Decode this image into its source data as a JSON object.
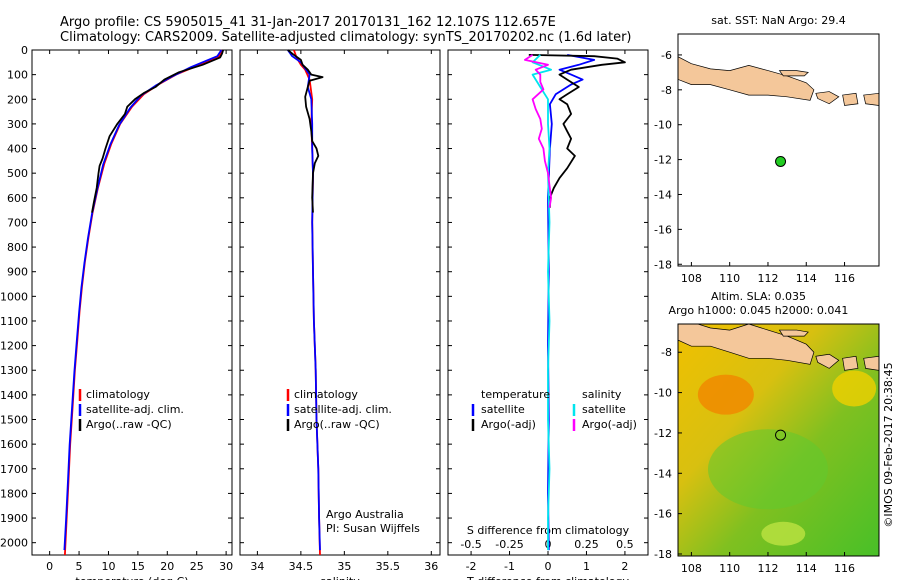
{
  "title": {
    "line1": "Argo profile: CS 5905015_41 31-Jan-2017 20170131_162 12.107S 112.657E",
    "line2": "Climatology: CARS2009. Satellite-adjusted climatology: synTS_20170202.nc (1.6d later)"
  },
  "depth_ticks": [
    0,
    100,
    200,
    300,
    400,
    500,
    600,
    700,
    800,
    900,
    1000,
    1100,
    1200,
    1300,
    1400,
    1500,
    1600,
    1700,
    1800,
    1900,
    2000
  ],
  "colors": {
    "clim": "#ff0000",
    "sat": "#0000ff",
    "argo": "#000000",
    "sat_s": "#00e5ee",
    "argo_s": "#ff00ff",
    "land": "#f4c79a",
    "marker": "#22cc22"
  },
  "chart_data": [
    {
      "type": "line",
      "id": "temperature",
      "xlabel": "temperature (deg C)",
      "xticks": [
        0,
        5,
        10,
        15,
        20,
        25,
        30
      ],
      "xlim": [
        -3,
        31
      ],
      "ylim": [
        0,
        2050
      ],
      "legend": [
        "climatology",
        "satellite-adj. clim.",
        "Argo(..raw -QC)"
      ],
      "series": [
        {
          "name": "climatology",
          "color": "clim",
          "points": [
            [
              29.3,
              0
            ],
            [
              28.8,
              25
            ],
            [
              27,
              45
            ],
            [
              24.5,
              70
            ],
            [
              21.5,
              100
            ],
            [
              18.5,
              140
            ],
            [
              16,
              180
            ],
            [
              14,
              230
            ],
            [
              12,
              300
            ],
            [
              10.5,
              380
            ],
            [
              9.3,
              460
            ],
            [
              8.2,
              560
            ],
            [
              7.3,
              660
            ],
            [
              6.6,
              760
            ],
            [
              6,
              860
            ],
            [
              5.5,
              960
            ],
            [
              5.1,
              1060
            ],
            [
              4.7,
              1180
            ],
            [
              4.3,
              1300
            ],
            [
              3.9,
              1450
            ],
            [
              3.5,
              1600
            ],
            [
              3.2,
              1750
            ],
            [
              2.9,
              1900
            ],
            [
              2.6,
              2050
            ]
          ]
        },
        {
          "name": "satellite-adj. clim.",
          "color": "sat",
          "points": [
            [
              29.2,
              0
            ],
            [
              28.5,
              25
            ],
            [
              26.5,
              45
            ],
            [
              24,
              70
            ],
            [
              21,
              105
            ],
            [
              18,
              145
            ],
            [
              15.5,
              185
            ],
            [
              13.7,
              235
            ],
            [
              11.8,
              305
            ],
            [
              10.3,
              385
            ],
            [
              9.1,
              465
            ],
            [
              8.1,
              565
            ],
            [
              7.2,
              665
            ],
            [
              6.5,
              765
            ],
            [
              5.9,
              865
            ],
            [
              5.4,
              965
            ],
            [
              5,
              1065
            ],
            [
              4.6,
              1185
            ],
            [
              4.2,
              1305
            ],
            [
              3.8,
              1455
            ],
            [
              3.4,
              1605
            ],
            [
              3.1,
              1755
            ],
            [
              2.8,
              1905
            ],
            [
              2.5,
              2030
            ]
          ]
        },
        {
          "name": "Argo(..raw -QC)",
          "color": "argo",
          "points": [
            [
              29.5,
              0
            ],
            [
              29.3,
              15
            ],
            [
              29,
              30
            ],
            [
              26,
              60
            ],
            [
              22,
              90
            ],
            [
              19.5,
              120
            ],
            [
              18,
              150
            ],
            [
              16,
              175
            ],
            [
              14.5,
              200
            ],
            [
              13.2,
              230
            ],
            [
              12.8,
              260
            ],
            [
              11.5,
              300
            ],
            [
              10.2,
              350
            ],
            [
              9.5,
              400
            ],
            [
              9,
              440
            ],
            [
              8.5,
              470
            ],
            [
              8.3,
              500
            ],
            [
              8,
              560
            ],
            [
              7.5,
              620
            ],
            [
              7.2,
              660
            ]
          ]
        }
      ]
    },
    {
      "type": "line",
      "id": "salinity",
      "xlabel": "salinity",
      "xticks": [
        34,
        34.5,
        35,
        35.5,
        36
      ],
      "xlim": [
        33.8,
        36.1
      ],
      "ylim": [
        0,
        2050
      ],
      "legend": [
        "climatology",
        "satellite-adj. clim.",
        "Argo(..raw -QC)"
      ],
      "annotation": [
        "Argo Australia",
        "PI: Susan Wijffels"
      ],
      "series": [
        {
          "name": "climatology",
          "color": "clim",
          "points": [
            [
              34.42,
              0
            ],
            [
              34.45,
              30
            ],
            [
              34.5,
              60
            ],
            [
              34.55,
              80
            ],
            [
              34.6,
              120
            ],
            [
              34.63,
              200
            ],
            [
              34.62,
              300
            ],
            [
              34.63,
              400
            ],
            [
              34.64,
              500
            ],
            [
              34.63,
              700
            ],
            [
              34.64,
              900
            ],
            [
              34.65,
              1100
            ],
            [
              34.67,
              1300
            ],
            [
              34.68,
              1500
            ],
            [
              34.7,
              1700
            ],
            [
              34.71,
              1900
            ],
            [
              34.72,
              2050
            ]
          ]
        },
        {
          "name": "satellite-adj. clim.",
          "color": "sat",
          "points": [
            [
              34.35,
              0
            ],
            [
              34.4,
              25
            ],
            [
              34.5,
              50
            ],
            [
              34.55,
              75
            ],
            [
              34.6,
              100
            ],
            [
              34.58,
              150
            ],
            [
              34.62,
              200
            ],
            [
              34.63,
              300
            ],
            [
              34.63,
              400
            ],
            [
              34.64,
              500
            ],
            [
              34.63,
              700
            ],
            [
              34.64,
              900
            ],
            [
              34.65,
              1100
            ],
            [
              34.67,
              1300
            ],
            [
              34.68,
              1500
            ],
            [
              34.7,
              1700
            ],
            [
              34.71,
              1900
            ],
            [
              34.72,
              2030
            ]
          ]
        },
        {
          "name": "Argo(..raw -QC)",
          "color": "argo",
          "points": [
            [
              34.35,
              0
            ],
            [
              34.42,
              20
            ],
            [
              34.5,
              40
            ],
            [
              34.52,
              60
            ],
            [
              34.58,
              80
            ],
            [
              34.62,
              100
            ],
            [
              34.75,
              110
            ],
            [
              34.6,
              125
            ],
            [
              34.58,
              150
            ],
            [
              34.55,
              190
            ],
            [
              34.56,
              230
            ],
            [
              34.6,
              280
            ],
            [
              34.62,
              330
            ],
            [
              34.63,
              370
            ],
            [
              34.68,
              400
            ],
            [
              34.7,
              430
            ],
            [
              34.66,
              460
            ],
            [
              34.64,
              500
            ],
            [
              34.63,
              600
            ],
            [
              34.64,
              660
            ]
          ]
        }
      ]
    },
    {
      "type": "line",
      "id": "difference",
      "xlabel": "T difference from climatology",
      "xlabel_top": "S difference from climatology",
      "xticks": [
        -2,
        -1,
        0,
        1,
        2
      ],
      "xticks_top": [
        -0.5,
        -0.25,
        0,
        0.25,
        0.5
      ],
      "xlim": [
        -2.6,
        2.6
      ],
      "ylim": [
        0,
        2050
      ],
      "legend_t": [
        "temperature",
        "satellite",
        "Argo(-adj)"
      ],
      "legend_s": [
        "salinity",
        "satellite",
        "Argo(-adj)"
      ],
      "series": [
        {
          "name": "temperature satellite",
          "color": "sat",
          "points": [
            [
              0.5,
              20
            ],
            [
              1.2,
              40
            ],
            [
              0.8,
              60
            ],
            [
              0.3,
              80
            ],
            [
              0.6,
              100
            ],
            [
              0.9,
              120
            ],
            [
              0.6,
              140
            ],
            [
              0.2,
              180
            ],
            [
              0.05,
              220
            ],
            [
              0.1,
              300
            ],
            [
              0.05,
              400
            ],
            [
              0,
              600
            ],
            [
              0.02,
              900
            ],
            [
              0,
              1200
            ],
            [
              0.02,
              1500
            ],
            [
              0,
              1800
            ],
            [
              0.02,
              2030
            ]
          ]
        },
        {
          "name": "temperature Argo(-adj)",
          "color": "argo",
          "points": [
            [
              -0.5,
              20
            ],
            [
              1.2,
              25
            ],
            [
              1.8,
              35
            ],
            [
              2.0,
              50
            ],
            [
              1.4,
              60
            ],
            [
              0.6,
              80
            ],
            [
              0.3,
              100
            ],
            [
              0.5,
              120
            ],
            [
              0.8,
              150
            ],
            [
              0.5,
              180
            ],
            [
              0.3,
              200
            ],
            [
              0.5,
              220
            ],
            [
              0.6,
              260
            ],
            [
              0.4,
              300
            ],
            [
              0.5,
              330
            ],
            [
              0.6,
              360
            ],
            [
              0.5,
              400
            ],
            [
              0.7,
              430
            ],
            [
              0.5,
              480
            ],
            [
              0.3,
              520
            ],
            [
              0.15,
              560
            ],
            [
              0.05,
              600
            ],
            [
              0.05,
              640
            ]
          ]
        },
        {
          "name": "salinity satellite",
          "color": "sat_s",
          "points": [
            [
              -0.05,
              20
            ],
            [
              -0.1,
              50
            ],
            [
              0.02,
              80
            ],
            [
              -0.1,
              100
            ],
            [
              -0.05,
              150
            ],
            [
              0,
              200
            ],
            [
              0,
              300
            ],
            [
              0.01,
              400
            ],
            [
              0,
              500
            ],
            [
              0.01,
              700
            ],
            [
              0,
              900
            ],
            [
              0.01,
              1100
            ],
            [
              0,
              1300
            ],
            [
              0,
              1500
            ],
            [
              0.01,
              1700
            ],
            [
              0,
              1900
            ],
            [
              0,
              2030
            ]
          ]
        },
        {
          "name": "salinity Argo(-adj)",
          "color": "argo_s",
          "points": [
            [
              -0.1,
              20
            ],
            [
              -0.15,
              40
            ],
            [
              0,
              60
            ],
            [
              -0.08,
              80
            ],
            [
              -0.05,
              100
            ],
            [
              -0.05,
              130
            ],
            [
              -0.03,
              160
            ],
            [
              -0.1,
              200
            ],
            [
              -0.08,
              240
            ],
            [
              -0.05,
              280
            ],
            [
              -0.04,
              320
            ],
            [
              -0.06,
              360
            ],
            [
              -0.03,
              400
            ],
            [
              -0.02,
              450
            ],
            [
              0,
              500
            ],
            [
              0.01,
              550
            ],
            [
              0.02,
              600
            ],
            [
              0.01,
              640
            ]
          ]
        }
      ]
    }
  ],
  "maps": [
    {
      "id": "sst_map",
      "title": "sat. SST: NaN Argo: 29.4",
      "xticks": [
        108,
        110,
        112,
        114,
        116
      ],
      "yticks": [
        -6,
        -8,
        -10,
        -12,
        -14,
        -16,
        -18
      ],
      "xlim": [
        107.3,
        117.8
      ],
      "ylim": [
        -18.1,
        -4.8
      ],
      "marker": [
        112.657,
        -12.107
      ]
    },
    {
      "id": "sla_map",
      "title1": "Altim. SLA: 0.035",
      "title2": "Argo h1000: 0.045 h2000: 0.041",
      "xticks": [
        108,
        110,
        112,
        114,
        116
      ],
      "yticks": [
        -8,
        -10,
        -12,
        -14,
        -16,
        -18
      ],
      "xlim": [
        107.3,
        117.8
      ],
      "ylim": [
        -18.1,
        -6.6
      ],
      "marker": [
        112.657,
        -12.107
      ]
    }
  ],
  "side_note": "©IMOS 09-Feb-2017 20:38:45"
}
